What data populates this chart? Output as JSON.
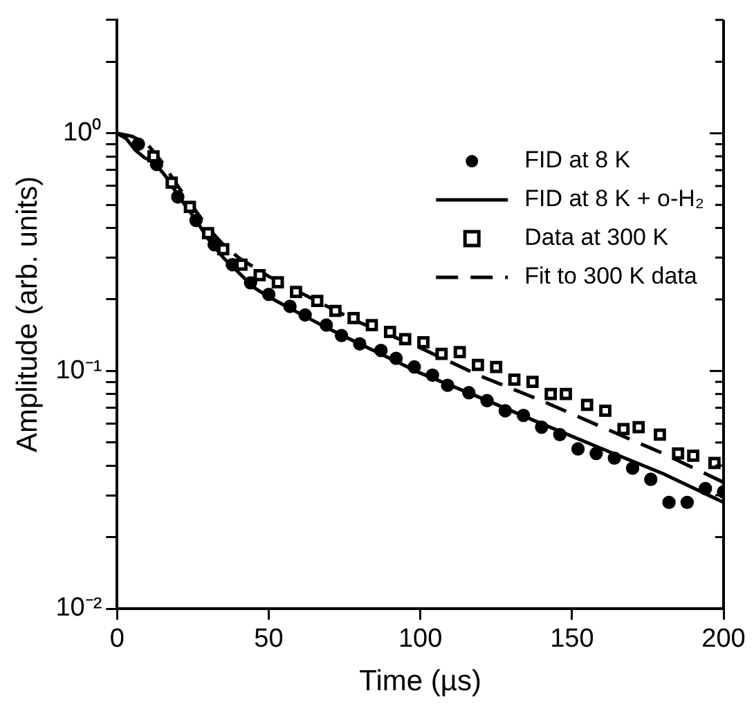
{
  "chart_data": {
    "type": "line",
    "xlabel": "Time (µs)",
    "ylabel": "Amplitude (arb. units)",
    "log": "y",
    "xlim": [
      0,
      200
    ],
    "xticks": [
      0,
      50,
      100,
      150,
      200
    ],
    "ylim": [
      0.01,
      3
    ],
    "yticks": [
      {
        "value": 0.01,
        "label": "10⁻²"
      },
      {
        "value": 0.02,
        "label": null
      },
      {
        "value": 0.03,
        "label": null
      },
      {
        "value": 0.04,
        "label": null
      },
      {
        "value": 0.05,
        "label": null
      },
      {
        "value": 0.06,
        "label": null
      },
      {
        "value": 0.07,
        "label": null
      },
      {
        "value": 0.08,
        "label": null
      },
      {
        "value": 0.09,
        "label": null
      },
      {
        "value": 0.1,
        "label": "10⁻¹"
      },
      {
        "value": 0.2,
        "label": null
      },
      {
        "value": 0.3,
        "label": null
      },
      {
        "value": 0.4,
        "label": null
      },
      {
        "value": 0.5,
        "label": null
      },
      {
        "value": 0.6,
        "label": null
      },
      {
        "value": 0.7,
        "label": null
      },
      {
        "value": 0.8,
        "label": null
      },
      {
        "value": 0.9,
        "label": null
      },
      {
        "value": 1,
        "label": "10⁰"
      },
      {
        "value": 2,
        "label": null
      },
      {
        "value": 3,
        "label": null
      }
    ],
    "grid": false,
    "legend": "top right",
    "series": [
      {
        "name": "FID at 8 K",
        "type": "scatter",
        "marker": "circle",
        "color": "#000000",
        "x": [
          7,
          13,
          20,
          26,
          32,
          38,
          44,
          50,
          57,
          62,
          69,
          74,
          80,
          87,
          92,
          98,
          104,
          109,
          116,
          122,
          128,
          134,
          140,
          146,
          152,
          158,
          164,
          170,
          176,
          182,
          188,
          194,
          200
        ],
        "values": [
          0.9,
          0.74,
          0.54,
          0.43,
          0.34,
          0.28,
          0.235,
          0.21,
          0.187,
          0.172,
          0.156,
          0.141,
          0.13,
          0.122,
          0.113,
          0.104,
          0.096,
          0.087,
          0.081,
          0.075,
          0.068,
          0.065,
          0.058,
          0.054,
          0.047,
          0.045,
          0.043,
          0.039,
          0.035,
          0.028,
          0.028,
          0.032,
          0.031
        ]
      },
      {
        "name": "FID at 8 K + o-H₂",
        "line_style": "solid",
        "color": "#000000",
        "x": [
          0,
          3,
          6,
          9,
          12,
          16,
          20,
          25,
          30,
          35,
          40,
          45,
          50,
          60,
          70,
          80,
          90,
          100,
          120,
          140,
          160,
          180,
          200
        ],
        "values": [
          1,
          0.95,
          0.85,
          0.79,
          0.76,
          0.66,
          0.55,
          0.45,
          0.36,
          0.3,
          0.26,
          0.225,
          0.205,
          0.175,
          0.15,
          0.13,
          0.113,
          0.098,
          0.077,
          0.06,
          0.047,
          0.037,
          0.028
        ]
      },
      {
        "name": "Data at 300 K",
        "type": "scatter",
        "marker": "square",
        "color": "#000000",
        "x": [
          12,
          18,
          24,
          30,
          35,
          41,
          47,
          53,
          59,
          66,
          72,
          78,
          84,
          90,
          95,
          101,
          107,
          113,
          119,
          125,
          131,
          137,
          143,
          148,
          155,
          161,
          167,
          172,
          179,
          185,
          190,
          197
        ],
        "values": [
          0.8,
          0.62,
          0.49,
          0.38,
          0.325,
          0.28,
          0.253,
          0.236,
          0.215,
          0.197,
          0.179,
          0.167,
          0.156,
          0.146,
          0.136,
          0.132,
          0.118,
          0.12,
          0.106,
          0.104,
          0.092,
          0.09,
          0.08,
          0.08,
          0.072,
          0.068,
          0.057,
          0.058,
          0.054,
          0.045,
          0.044,
          0.041
        ]
      },
      {
        "name": "Fit to 300 K data",
        "line_style": "dashed",
        "color": "#000000",
        "x": [
          0,
          5,
          10,
          15,
          20,
          25,
          30,
          35,
          40,
          50,
          60,
          70,
          80,
          100,
          120,
          140,
          160,
          180,
          200
        ],
        "values": [
          1,
          0.97,
          0.9,
          0.75,
          0.6,
          0.49,
          0.4,
          0.34,
          0.3,
          0.25,
          0.215,
          0.185,
          0.16,
          0.125,
          0.095,
          0.075,
          0.058,
          0.045,
          0.034
        ]
      }
    ]
  }
}
